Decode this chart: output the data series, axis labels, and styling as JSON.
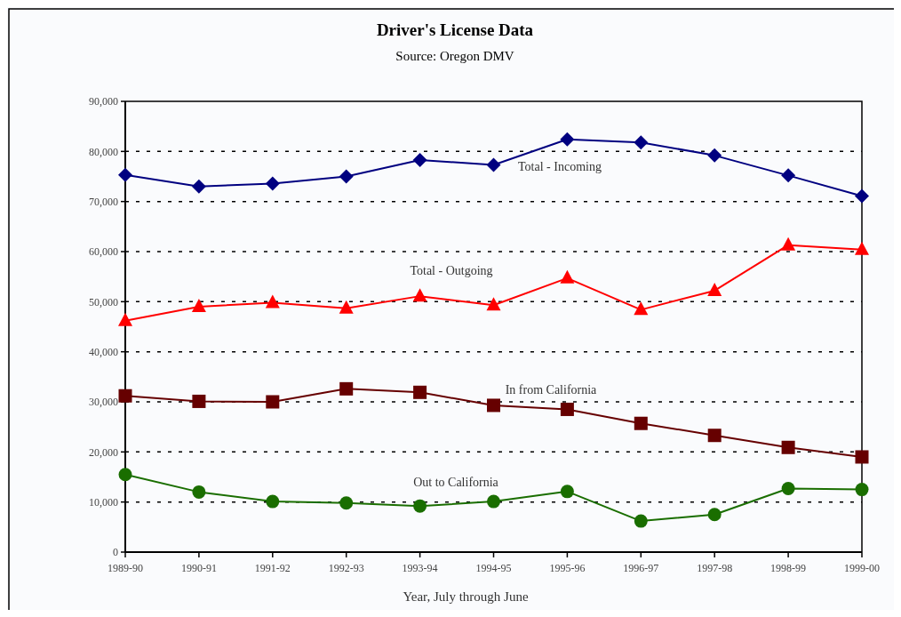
{
  "chart_data": {
    "type": "line",
    "title": "Driver's License Data",
    "subtitle": "Source: Oregon DMV",
    "xlabel": "Year, July through June",
    "categories": [
      "1989-90",
      "1990-91",
      "1991-92",
      "1992-93",
      "1993-94",
      "1994-95",
      "1995-96",
      "1996-97",
      "1997-98",
      "1998-99",
      "1999-00"
    ],
    "series": [
      {
        "name": "Total - Incoming",
        "color": "#000080",
        "marker": "diamond",
        "values": [
          75300,
          73000,
          73600,
          75000,
          78300,
          77300,
          82400,
          81800,
          79200,
          75200,
          71100
        ]
      },
      {
        "name": "Total - Outgoing",
        "color": "#ff0000",
        "marker": "triangle",
        "values": [
          46200,
          49000,
          49800,
          48700,
          51100,
          49300,
          54700,
          48400,
          52200,
          61300,
          60400
        ]
      },
      {
        "name": "In from California",
        "color": "#660000",
        "marker": "square",
        "values": [
          31200,
          30100,
          30000,
          32600,
          31900,
          29300,
          28500,
          25700,
          23300,
          20900,
          19000
        ]
      },
      {
        "name": "Out to California",
        "color": "#1a6e00",
        "marker": "circle",
        "values": [
          15500,
          12000,
          10100,
          9800,
          9200,
          10100,
          12100,
          6200,
          7500,
          12700,
          12500
        ]
      }
    ],
    "ylim": [
      0,
      90000
    ],
    "yticks": [
      0,
      {
        "value": 10000,
        "label": "10,000"
      },
      {
        "value": 20000,
        "label": "20,000"
      },
      {
        "value": 30000,
        "label": "30,000"
      },
      {
        "value": 40000,
        "label": "40,000"
      },
      {
        "value": 50000,
        "label": "50,000"
      },
      {
        "value": 60000,
        "label": "60,000"
      },
      {
        "value": 70000,
        "label": "70,000"
      },
      {
        "value": 80000,
        "label": "80,000"
      },
      {
        "value": 90000,
        "label": "90,000"
      }
    ],
    "grid": "y",
    "line_style": "solid"
  }
}
